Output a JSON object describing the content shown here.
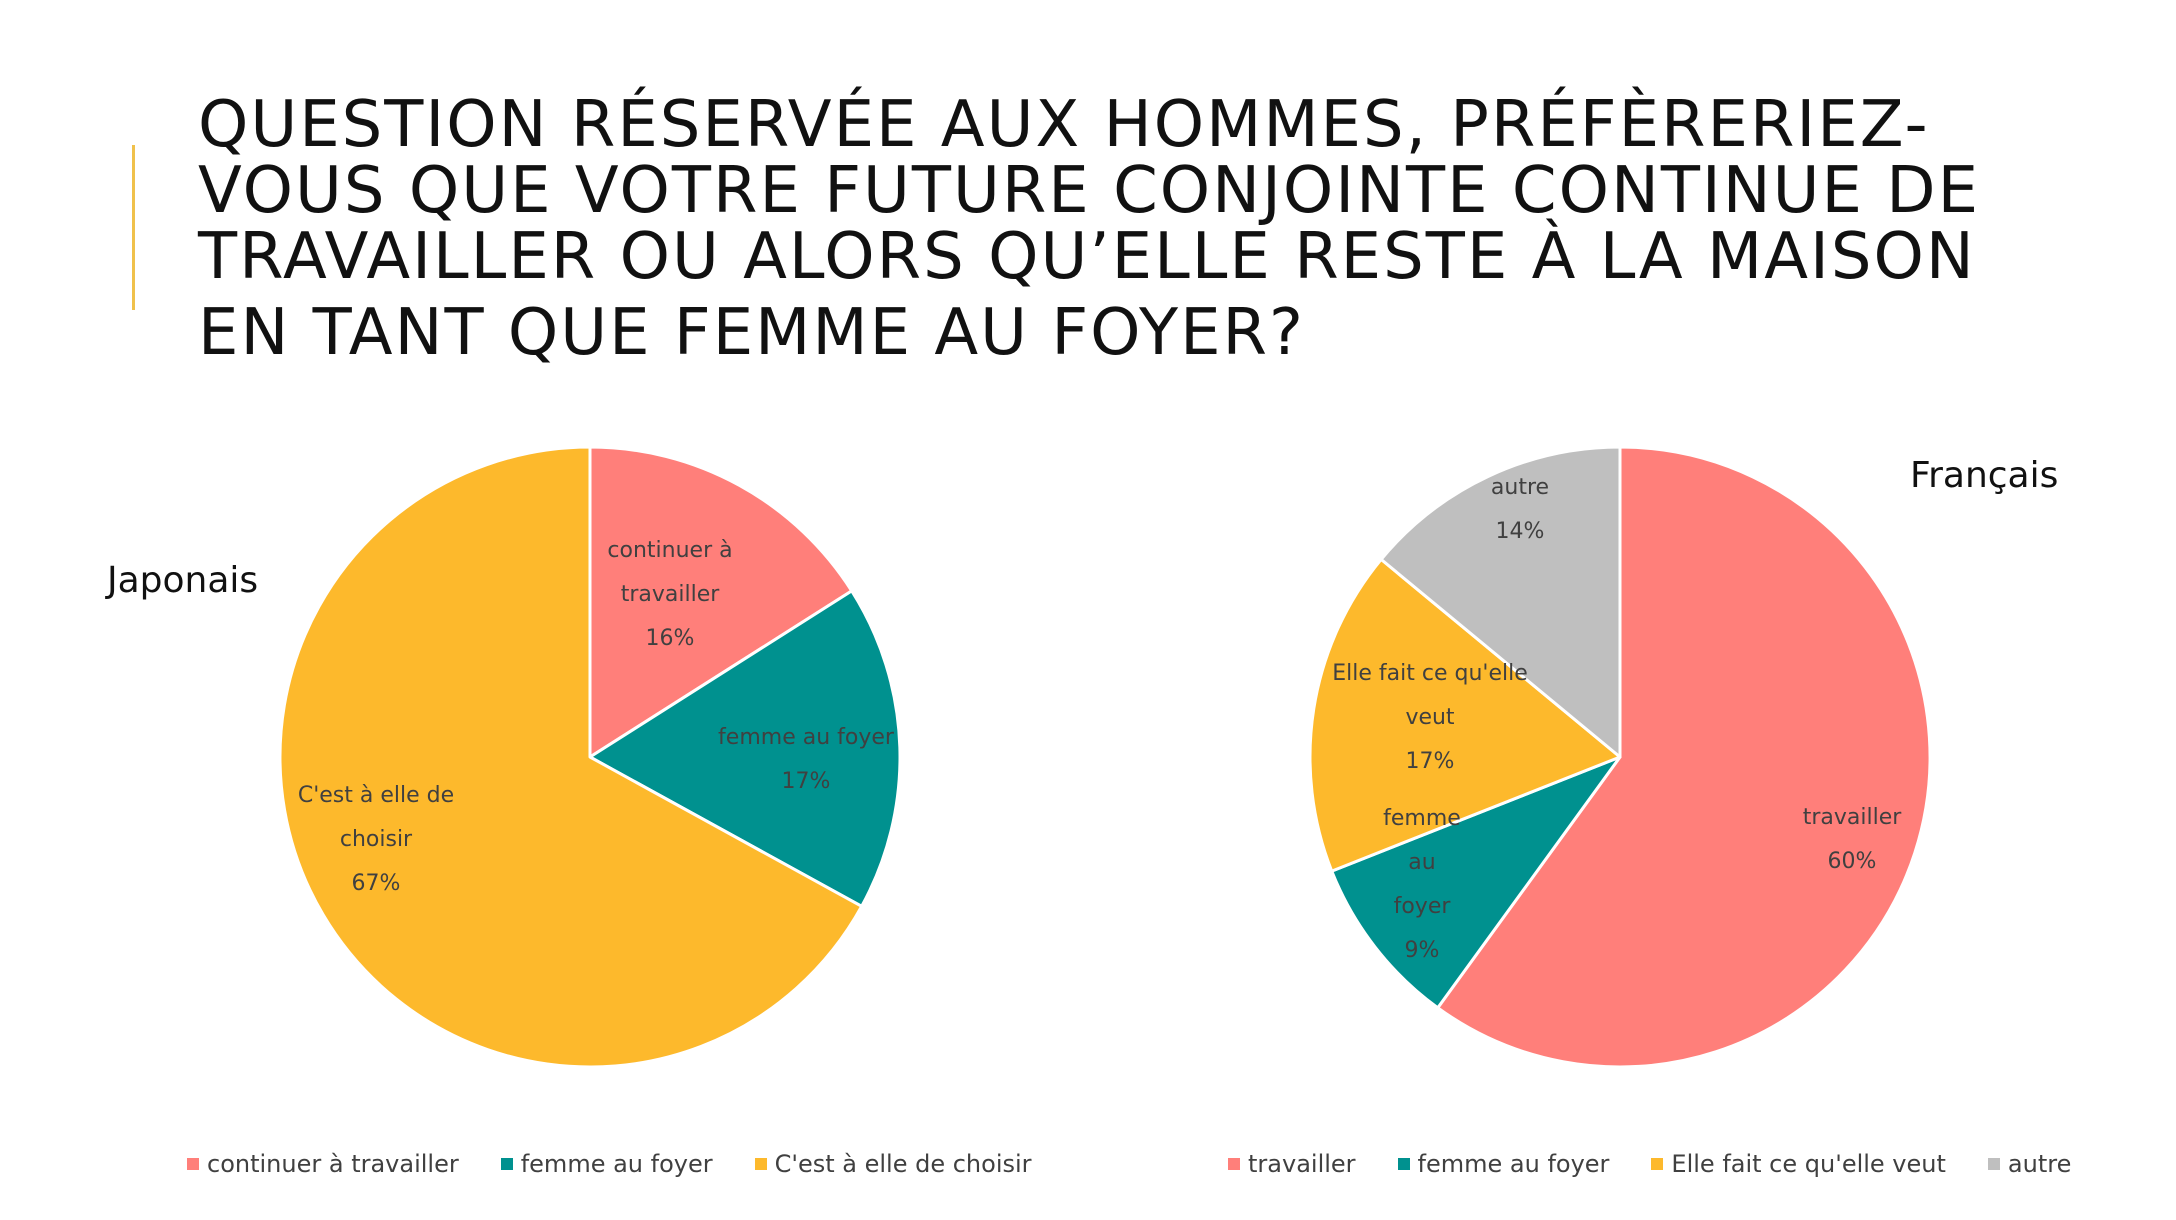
{
  "slide": {
    "title_lines": [
      "QUESTION RÉSERVÉE AUX HOMMES, PRÉFÈRERIEZ-",
      "VOUS QUE VOTRE FUTURE CONJOINTE CONTINUE DE",
      "TRAVAILLER OU ALORS QU’ELLE RESTE À LA MAISON",
      "EN TANT QUE FEMME AU FOYER?"
    ],
    "accent_color": "#f0c14b"
  },
  "chart_data": [
    {
      "type": "pie",
      "title": "Japonais",
      "categories": [
        "continuer à travailler",
        "femme au foyer",
        "C'est à elle de choisir"
      ],
      "values": [
        16,
        17,
        67
      ],
      "unit": "%",
      "colors": [
        "#ff7f7a",
        "#00918f",
        "#fdb92c"
      ],
      "slice_labels": [
        {
          "lines": [
            "continuer à",
            "travailler"
          ],
          "value": "16%"
        },
        {
          "lines": [
            "femme au foyer"
          ],
          "value": "17%"
        },
        {
          "lines": [
            "C'est à elle de",
            "choisir"
          ],
          "value": "67%"
        }
      ],
      "legend": [
        "continuer à travailler",
        "femme au foyer",
        "C'est à elle de choisir"
      ],
      "legend_position": "bottom",
      "start_angle_deg": 0,
      "direction": "clockwise"
    },
    {
      "type": "pie",
      "title": "Français",
      "categories": [
        "travailler",
        "femme au foyer",
        "Elle fait ce qu'elle veut",
        "autre"
      ],
      "values": [
        60,
        9,
        17,
        14
      ],
      "unit": "%",
      "colors": [
        "#ff7f7a",
        "#00918f",
        "#fdb92c",
        "#bfbfbf"
      ],
      "slice_labels": [
        {
          "lines": [
            "travailler"
          ],
          "value": "60%"
        },
        {
          "lines": [
            "femme",
            "au",
            "foyer"
          ],
          "value": "9%"
        },
        {
          "lines": [
            "Elle fait ce qu'elle",
            "veut"
          ],
          "value": "17%"
        },
        {
          "lines": [
            "autre"
          ],
          "value": "14%"
        }
      ],
      "legend": [
        "travailler",
        "femme au foyer",
        "Elle fait ce qu'elle veut",
        "autre"
      ],
      "legend_position": "bottom",
      "start_angle_deg": 0,
      "direction": "clockwise"
    }
  ]
}
